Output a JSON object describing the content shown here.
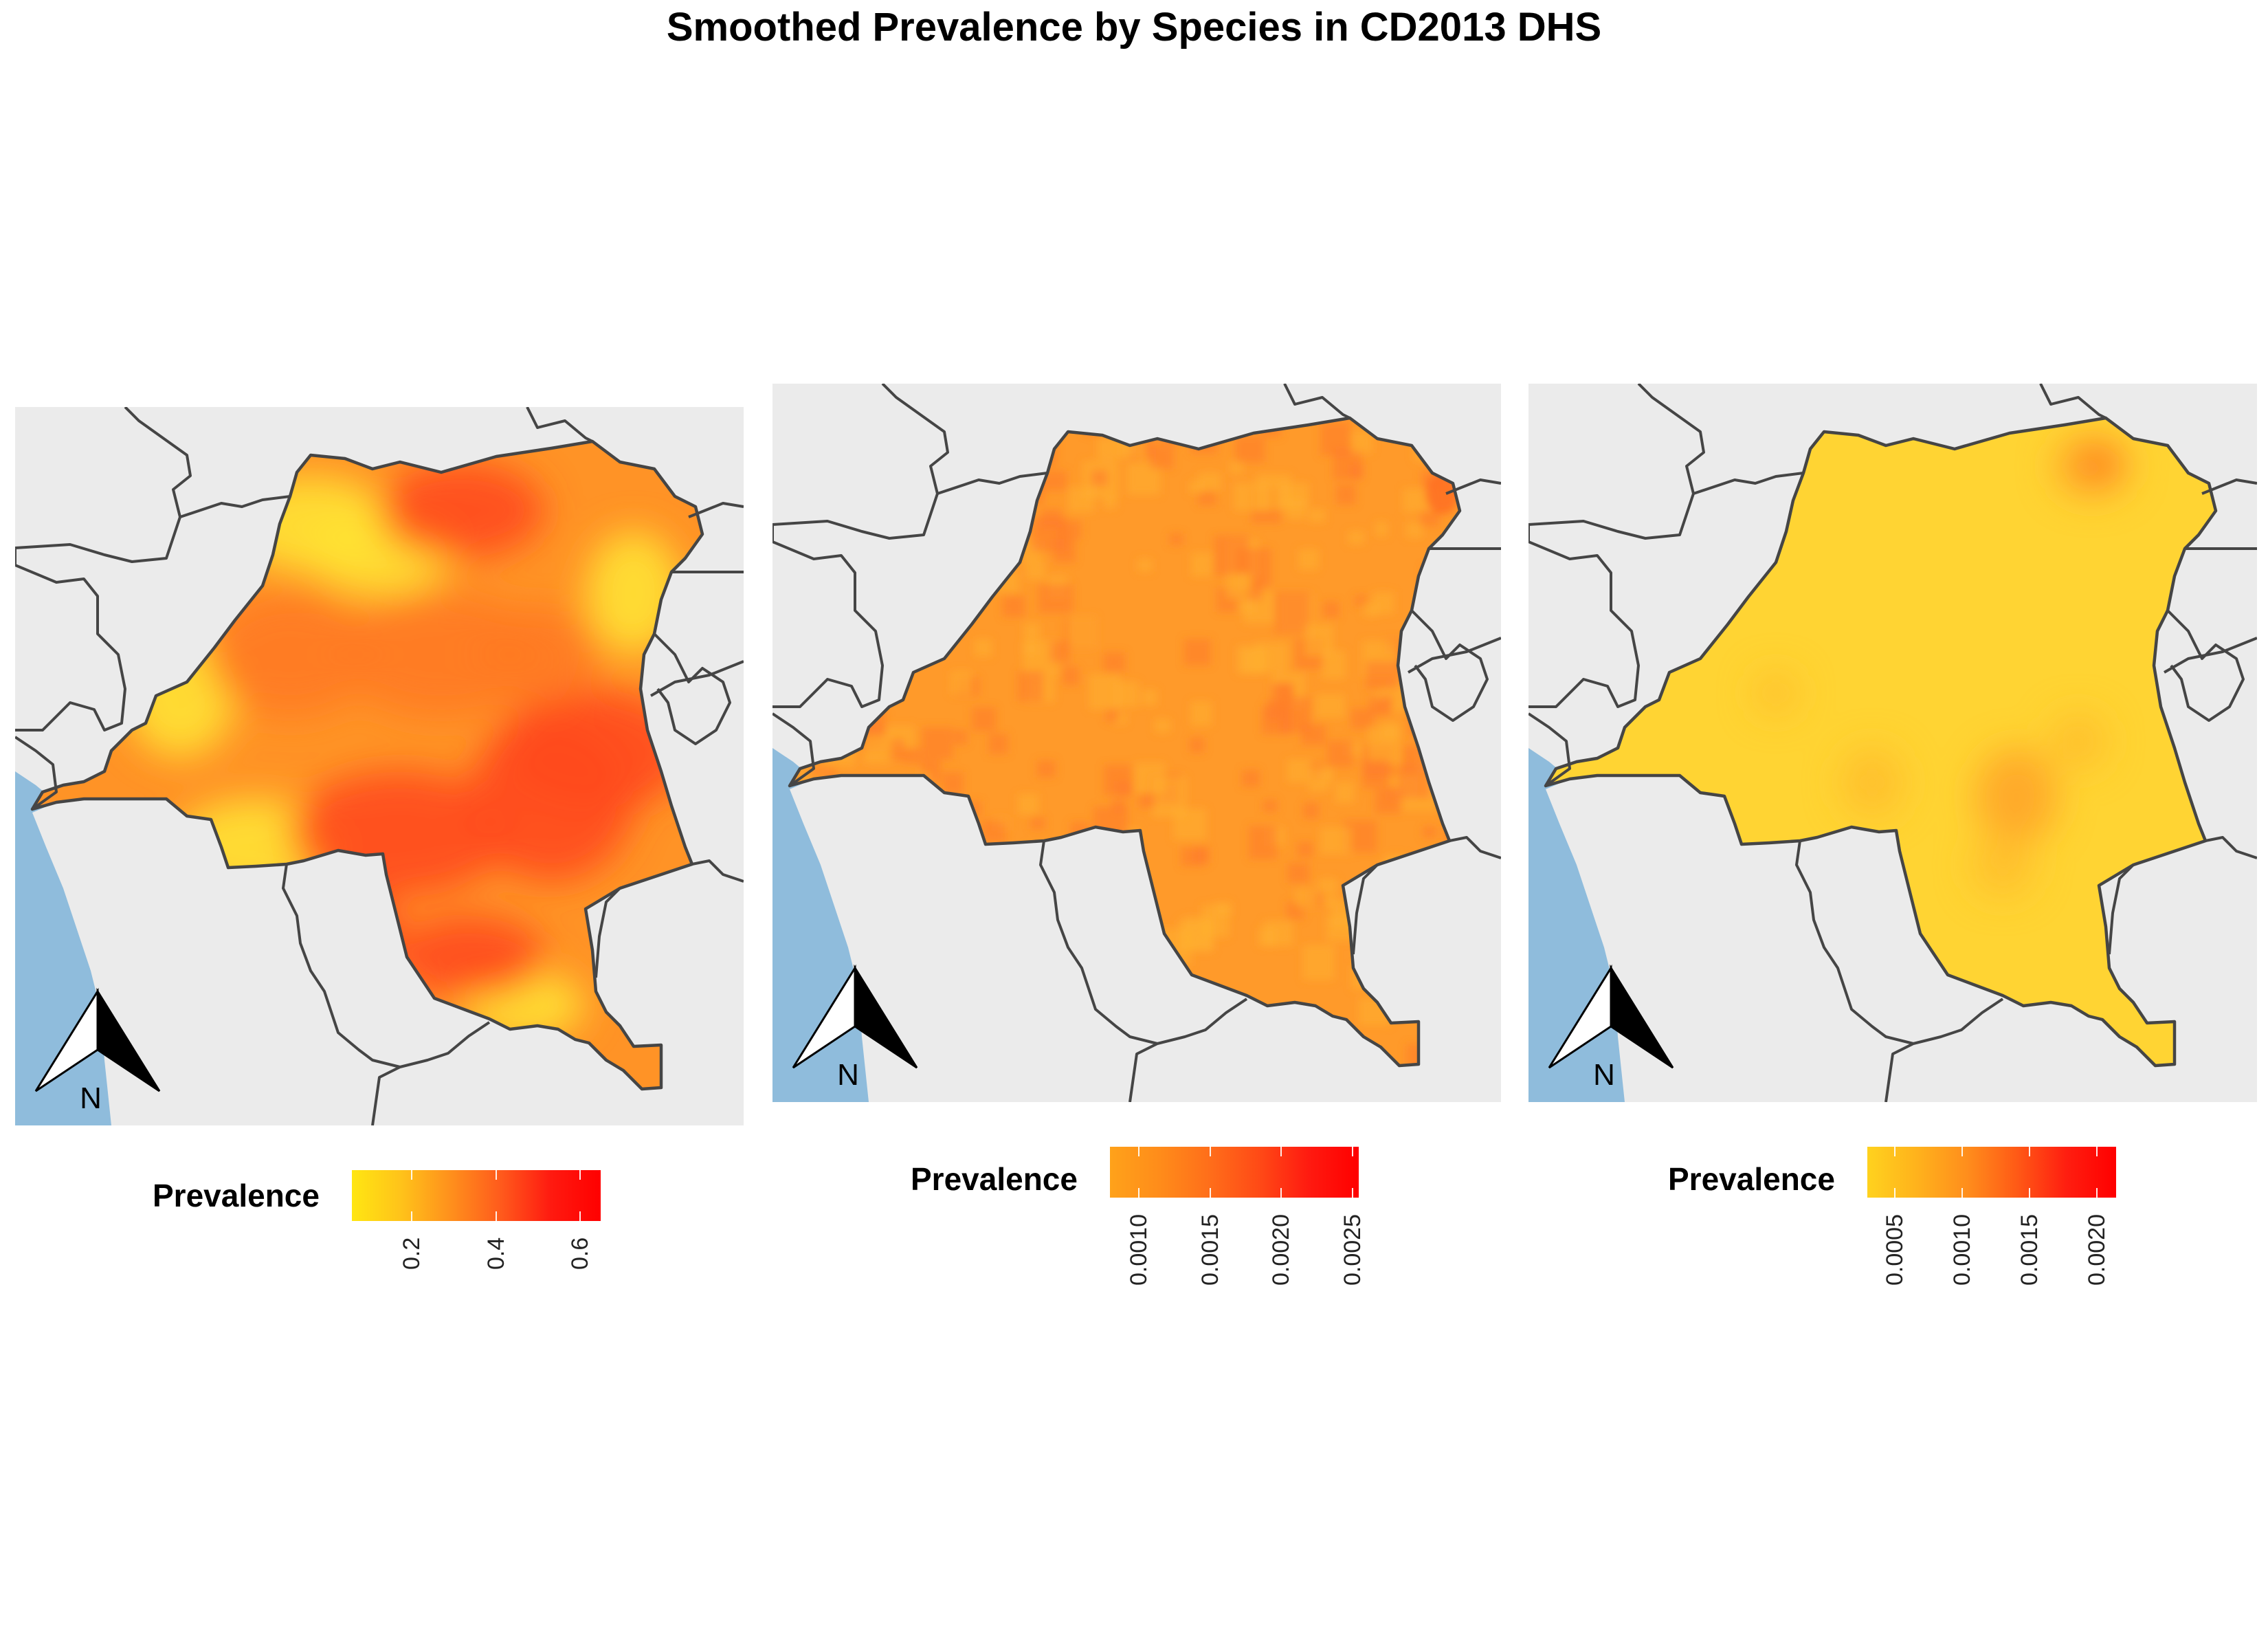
{
  "title": "Smoothed Prevalence by Species in CD2013 DHS",
  "colors": {
    "background_land": "#ebebeb",
    "ocean": "#8fbcdc",
    "border": "#454545"
  },
  "panels": [
    {
      "id": "panel-1",
      "legend": {
        "title": "Prevalence",
        "ticks": [
          "0.2",
          "0.4",
          "0.6"
        ],
        "tick_values": [
          0.2,
          0.4,
          0.6
        ],
        "range": [
          0.06,
          0.65
        ],
        "gradient": [
          "#ffe612",
          "#ffc21a",
          "#ff8f1c",
          "#ff5a1c",
          "#ff1a10",
          "#ff0000"
        ]
      },
      "north_arrow_label": "N",
      "map_fill": {
        "base": "#ff9326",
        "hot": "#ff4a1c",
        "cool": "#ffe233"
      }
    },
    {
      "id": "panel-2",
      "legend": {
        "title": "Prevalence",
        "ticks": [
          "0.0010",
          "0.0015",
          "0.0020",
          "0.0025"
        ],
        "tick_values": [
          0.001,
          0.0015,
          0.002,
          0.0025
        ],
        "range": [
          0.0008,
          0.00255
        ],
        "gradient": [
          "#ffa21a",
          "#ff8c1a",
          "#ff6e1a",
          "#ff4a16",
          "#ff1a10",
          "#ff0000"
        ]
      },
      "north_arrow_label": "N",
      "map_fill": {
        "base": "#ff9a2a",
        "hot": "#ff7a2a",
        "cool": "#ffb030"
      }
    },
    {
      "id": "panel-3",
      "legend": {
        "title": "Prevalence",
        "ticks": [
          "0.0005",
          "0.0010",
          "0.0015",
          "0.0020"
        ],
        "tick_values": [
          0.0005,
          0.001,
          0.0015,
          0.002
        ],
        "range": [
          0.0003,
          0.00215
        ],
        "gradient": [
          "#ffd21e",
          "#ffb21c",
          "#ff8e1c",
          "#ff5a16",
          "#ff1e10",
          "#ff0000"
        ]
      },
      "north_arrow_label": "N",
      "map_fill": {
        "base": "#ffd433",
        "hot": "#ffa52a",
        "cool": "#ffe034"
      }
    }
  ]
}
